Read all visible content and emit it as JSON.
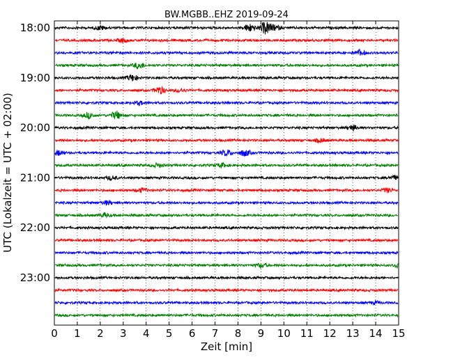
{
  "chart_data": {
    "type": "line",
    "title": "BW.MGBB..EHZ 2019-09-24",
    "xlabel": "Zeit  [min]",
    "ylabel": "UTC (Lokalzeit = UTC + 02:00)",
    "xlim": [
      0,
      15
    ],
    "x_ticks": [
      "0",
      "1",
      "2",
      "3",
      "4",
      "5",
      "6",
      "7",
      "8",
      "9",
      "10",
      "11",
      "12",
      "13",
      "14",
      "15"
    ],
    "grid": "vertical dotted",
    "colors": [
      "#000000",
      "#ff0000",
      "#0000ff",
      "#008000"
    ],
    "y_tick_labels": [
      {
        "label": "18:00",
        "trace_index": 0
      },
      {
        "label": "19:00",
        "trace_index": 4
      },
      {
        "label": "20:00",
        "trace_index": 8
      },
      {
        "label": "21:00",
        "trace_index": 12
      },
      {
        "label": "22:00",
        "trace_index": 16
      },
      {
        "label": "23:00",
        "trace_index": 20
      }
    ],
    "traces": [
      {
        "start": "18:00",
        "color": "#000000",
        "events": [
          {
            "t": 2.0,
            "amp": 0.3
          },
          {
            "t": 8.5,
            "amp": 0.6
          },
          {
            "t": 9.2,
            "amp": 1.0
          },
          {
            "t": 9.6,
            "amp": 0.4
          }
        ]
      },
      {
        "start": "18:15",
        "color": "#ff0000",
        "events": [
          {
            "t": 3.0,
            "amp": 0.3
          }
        ]
      },
      {
        "start": "18:30",
        "color": "#0000ff",
        "events": [
          {
            "t": 13.3,
            "amp": 0.4
          }
        ]
      },
      {
        "start": "18:45",
        "color": "#008000",
        "events": [
          {
            "t": 3.7,
            "amp": 0.5
          }
        ]
      },
      {
        "start": "19:00",
        "color": "#000000",
        "events": [
          {
            "t": 3.4,
            "amp": 0.5
          }
        ]
      },
      {
        "start": "19:15",
        "color": "#ff0000",
        "events": [
          {
            "t": 4.6,
            "amp": 0.6
          },
          {
            "t": 5.5,
            "amp": 0.3
          }
        ]
      },
      {
        "start": "19:30",
        "color": "#0000ff",
        "events": [
          {
            "t": 3.7,
            "amp": 0.3
          }
        ]
      },
      {
        "start": "19:45",
        "color": "#008000",
        "events": [
          {
            "t": 1.5,
            "amp": 0.4
          },
          {
            "t": 2.7,
            "amp": 0.6
          }
        ]
      },
      {
        "start": "20:00",
        "color": "#000000",
        "events": [
          {
            "t": 13.0,
            "amp": 0.4
          }
        ]
      },
      {
        "start": "20:15",
        "color": "#ff0000",
        "events": [
          {
            "t": 11.6,
            "amp": 0.3
          }
        ]
      },
      {
        "start": "20:30",
        "color": "#0000ff",
        "events": [
          {
            "t": 0.2,
            "amp": 0.4
          },
          {
            "t": 7.5,
            "amp": 0.5
          },
          {
            "t": 8.3,
            "amp": 0.5
          }
        ]
      },
      {
        "start": "20:45",
        "color": "#008000",
        "events": [
          {
            "t": 4.5,
            "amp": 0.3
          },
          {
            "t": 7.3,
            "amp": 0.3
          }
        ]
      },
      {
        "start": "21:00",
        "color": "#000000",
        "events": [
          {
            "t": 2.5,
            "amp": 0.3
          },
          {
            "t": 14.8,
            "amp": 0.3
          }
        ]
      },
      {
        "start": "21:15",
        "color": "#ff0000",
        "events": [
          {
            "t": 3.8,
            "amp": 0.3
          },
          {
            "t": 14.5,
            "amp": 0.3
          }
        ]
      },
      {
        "start": "21:30",
        "color": "#0000ff",
        "events": [
          {
            "t": 2.3,
            "amp": 0.3
          }
        ]
      },
      {
        "start": "21:45",
        "color": "#008000",
        "events": [
          {
            "t": 2.2,
            "amp": 0.3
          }
        ]
      },
      {
        "start": "22:00",
        "color": "#000000",
        "events": []
      },
      {
        "start": "22:15",
        "color": "#ff0000",
        "events": []
      },
      {
        "start": "22:30",
        "color": "#0000ff",
        "events": []
      },
      {
        "start": "22:45",
        "color": "#008000",
        "events": [
          {
            "t": 9.0,
            "amp": 0.3
          },
          {
            "t": 15.0,
            "amp": 0.3
          }
        ]
      },
      {
        "start": "23:00",
        "color": "#000000",
        "events": []
      },
      {
        "start": "23:15",
        "color": "#ff0000",
        "events": []
      },
      {
        "start": "23:30",
        "color": "#0000ff",
        "events": [
          {
            "t": 14.0,
            "amp": 0.2
          }
        ]
      },
      {
        "start": "23:45",
        "color": "#008000",
        "events": []
      }
    ]
  }
}
